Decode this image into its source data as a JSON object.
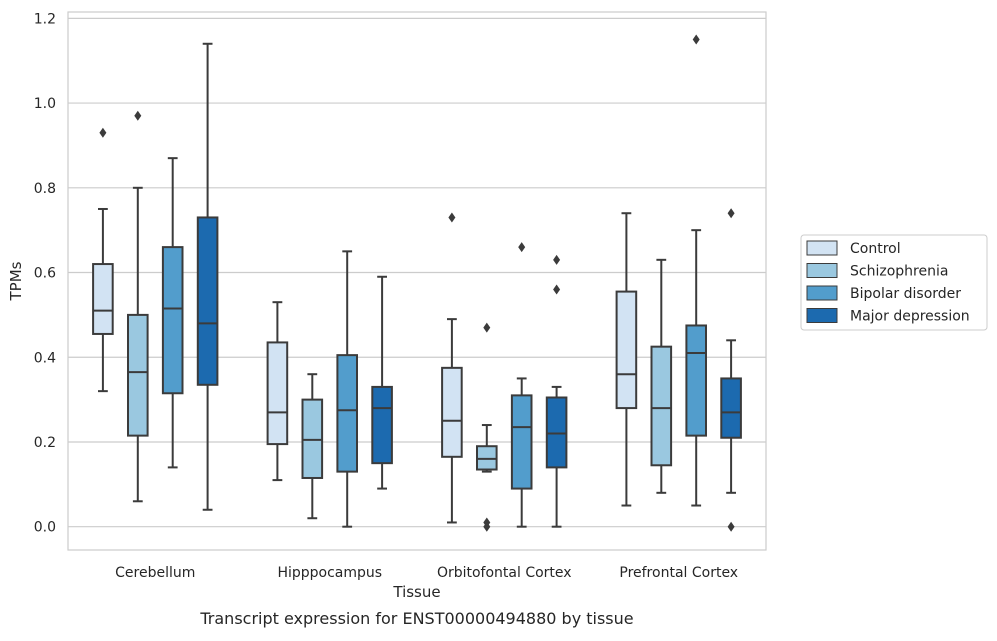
{
  "chart_data": {
    "type": "boxplot",
    "caption": "Transcript expression for ENST00000494880 by tissue",
    "xlabel": "Tissue",
    "ylabel": "TPMs",
    "ylim": [
      -0.055,
      1.215
    ],
    "yticks": [
      0.0,
      0.2,
      0.4,
      0.6,
      0.8,
      1.0,
      1.2
    ],
    "ytick_labels": [
      "0.0",
      "0.2",
      "0.4",
      "0.6",
      "0.8",
      "1.0",
      "1.2"
    ],
    "grid": "horizontal",
    "legend_position": "right",
    "categories": [
      "Cerebellum",
      "Hipppocampus",
      "Orbitofontal Cortex",
      "Prefrontal Cortex"
    ],
    "series": [
      {
        "name": "Control",
        "color": "#d2e3f3",
        "boxes": [
          {
            "min": 0.32,
            "q1": 0.455,
            "median": 0.51,
            "q3": 0.62,
            "max": 0.75,
            "outliers": [
              0.93
            ]
          },
          {
            "min": 0.11,
            "q1": 0.195,
            "median": 0.27,
            "q3": 0.435,
            "max": 0.53,
            "outliers": []
          },
          {
            "min": 0.01,
            "q1": 0.165,
            "median": 0.25,
            "q3": 0.375,
            "max": 0.49,
            "outliers": [
              0.73
            ]
          },
          {
            "min": 0.05,
            "q1": 0.28,
            "median": 0.36,
            "q3": 0.555,
            "max": 0.74,
            "outliers": []
          }
        ]
      },
      {
        "name": "Schizophrenia",
        "color": "#9ac8e0",
        "boxes": [
          {
            "min": 0.06,
            "q1": 0.215,
            "median": 0.365,
            "q3": 0.5,
            "max": 0.8,
            "outliers": [
              0.97
            ]
          },
          {
            "min": 0.02,
            "q1": 0.115,
            "median": 0.205,
            "q3": 0.3,
            "max": 0.36,
            "outliers": []
          },
          {
            "min": 0.13,
            "q1": 0.135,
            "median": 0.16,
            "q3": 0.19,
            "max": 0.24,
            "outliers": [
              0.47,
              0.01,
              0.0
            ]
          },
          {
            "min": 0.08,
            "q1": 0.145,
            "median": 0.28,
            "q3": 0.425,
            "max": 0.63,
            "outliers": []
          }
        ]
      },
      {
        "name": "Bipolar disorder",
        "color": "#529dcc",
        "boxes": [
          {
            "min": 0.14,
            "q1": 0.315,
            "median": 0.515,
            "q3": 0.66,
            "max": 0.87,
            "outliers": []
          },
          {
            "min": 0.0,
            "q1": 0.13,
            "median": 0.275,
            "q3": 0.405,
            "max": 0.65,
            "outliers": []
          },
          {
            "min": 0.0,
            "q1": 0.09,
            "median": 0.235,
            "q3": 0.31,
            "max": 0.35,
            "outliers": [
              0.66
            ]
          },
          {
            "min": 0.05,
            "q1": 0.215,
            "median": 0.41,
            "q3": 0.475,
            "max": 0.7,
            "outliers": [
              1.15
            ]
          }
        ]
      },
      {
        "name": "Major depression",
        "color": "#1c6aaf",
        "boxes": [
          {
            "min": 0.04,
            "q1": 0.335,
            "median": 0.48,
            "q3": 0.73,
            "max": 1.14,
            "outliers": []
          },
          {
            "min": 0.09,
            "q1": 0.15,
            "median": 0.28,
            "q3": 0.33,
            "max": 0.59,
            "outliers": []
          },
          {
            "min": 0.0,
            "q1": 0.14,
            "median": 0.22,
            "q3": 0.305,
            "max": 0.33,
            "outliers": [
              0.63,
              0.56
            ]
          },
          {
            "min": 0.08,
            "q1": 0.21,
            "median": 0.27,
            "q3": 0.35,
            "max": 0.44,
            "outliers": [
              0.74,
              0.0
            ]
          }
        ]
      }
    ]
  }
}
